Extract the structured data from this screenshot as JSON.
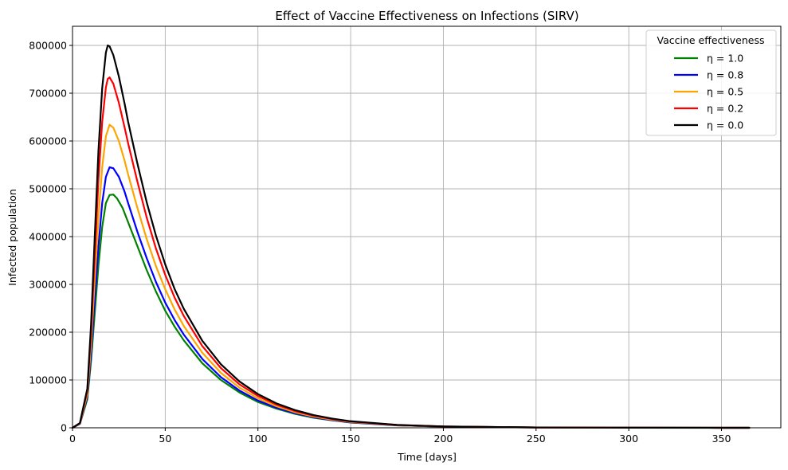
{
  "chart_data": {
    "type": "line",
    "title": "Effect of Vaccine Effectiveness on Infections (SIRV)",
    "xlabel": "Time [days]",
    "ylabel": "Infected population",
    "xlim": [
      0,
      382
    ],
    "ylim": [
      0,
      840000
    ],
    "xticks": [
      0,
      50,
      100,
      150,
      200,
      250,
      300,
      350
    ],
    "yticks": [
      0,
      100000,
      200000,
      300000,
      400000,
      500000,
      600000,
      700000,
      800000
    ],
    "grid": true,
    "legend": {
      "title": "Vaccine effectiveness",
      "placement": "top-right"
    },
    "series": [
      {
        "name": "η = 1.0",
        "color": "#008000",
        "points": [
          [
            0,
            0
          ],
          [
            4,
            8000
          ],
          [
            8,
            60000
          ],
          [
            10,
            140000
          ],
          [
            12,
            240000
          ],
          [
            14,
            340000
          ],
          [
            16,
            420000
          ],
          [
            18,
            470000
          ],
          [
            20,
            487000
          ],
          [
            22,
            488000
          ],
          [
            24,
            480000
          ],
          [
            27,
            460000
          ],
          [
            30,
            430000
          ],
          [
            35,
            380000
          ],
          [
            40,
            330000
          ],
          [
            45,
            285000
          ],
          [
            50,
            245000
          ],
          [
            55,
            212000
          ],
          [
            60,
            183000
          ],
          [
            70,
            135000
          ],
          [
            80,
            100000
          ],
          [
            90,
            74000
          ],
          [
            100,
            54000
          ],
          [
            110,
            40000
          ],
          [
            120,
            29000
          ],
          [
            130,
            21000
          ],
          [
            140,
            15500
          ],
          [
            150,
            11000
          ],
          [
            175,
            5000
          ],
          [
            200,
            2400
          ],
          [
            250,
            600
          ],
          [
            300,
            150
          ],
          [
            350,
            40
          ],
          [
            365,
            25
          ]
        ]
      },
      {
        "name": "η = 0.8",
        "color": "#0000ff",
        "points": [
          [
            0,
            0
          ],
          [
            4,
            8500
          ],
          [
            8,
            65000
          ],
          [
            10,
            155000
          ],
          [
            12,
            270000
          ],
          [
            14,
            380000
          ],
          [
            16,
            470000
          ],
          [
            18,
            525000
          ],
          [
            20,
            545000
          ],
          [
            22,
            543000
          ],
          [
            25,
            525000
          ],
          [
            28,
            495000
          ],
          [
            30,
            470000
          ],
          [
            35,
            410000
          ],
          [
            40,
            355000
          ],
          [
            45,
            305000
          ],
          [
            50,
            262000
          ],
          [
            55,
            226000
          ],
          [
            60,
            195000
          ],
          [
            70,
            144000
          ],
          [
            80,
            106000
          ],
          [
            90,
            78000
          ],
          [
            100,
            57000
          ],
          [
            110,
            42000
          ],
          [
            120,
            30500
          ],
          [
            130,
            22000
          ],
          [
            140,
            16000
          ],
          [
            150,
            11500
          ],
          [
            175,
            5200
          ],
          [
            200,
            2500
          ],
          [
            250,
            620
          ],
          [
            300,
            155
          ],
          [
            350,
            42
          ],
          [
            365,
            26
          ]
        ]
      },
      {
        "name": "η = 0.5",
        "color": "#ffa500",
        "points": [
          [
            0,
            0
          ],
          [
            4,
            9000
          ],
          [
            8,
            70000
          ],
          [
            10,
            175000
          ],
          [
            12,
            310000
          ],
          [
            14,
            440000
          ],
          [
            16,
            545000
          ],
          [
            18,
            610000
          ],
          [
            20,
            634000
          ],
          [
            22,
            628000
          ],
          [
            25,
            600000
          ],
          [
            28,
            560000
          ],
          [
            30,
            530000
          ],
          [
            35,
            460000
          ],
          [
            40,
            395000
          ],
          [
            45,
            338000
          ],
          [
            50,
            290000
          ],
          [
            55,
            248000
          ],
          [
            60,
            213000
          ],
          [
            70,
            157000
          ],
          [
            80,
            115000
          ],
          [
            90,
            84000
          ],
          [
            100,
            61500
          ],
          [
            110,
            45000
          ],
          [
            120,
            32500
          ],
          [
            130,
            23500
          ],
          [
            140,
            17000
          ],
          [
            150,
            12200
          ],
          [
            175,
            5500
          ],
          [
            200,
            2600
          ],
          [
            250,
            650
          ],
          [
            300,
            160
          ],
          [
            350,
            44
          ],
          [
            365,
            27
          ]
        ]
      },
      {
        "name": "η = 0.2",
        "color": "#ff0000",
        "points": [
          [
            0,
            0
          ],
          [
            4,
            9500
          ],
          [
            8,
            78000
          ],
          [
            10,
            200000
          ],
          [
            12,
            360000
          ],
          [
            14,
            520000
          ],
          [
            16,
            640000
          ],
          [
            18,
            712000
          ],
          [
            19,
            730000
          ],
          [
            20,
            733000
          ],
          [
            22,
            720000
          ],
          [
            25,
            680000
          ],
          [
            28,
            630000
          ],
          [
            30,
            595000
          ],
          [
            35,
            515000
          ],
          [
            40,
            440000
          ],
          [
            45,
            375000
          ],
          [
            50,
            320000
          ],
          [
            55,
            273000
          ],
          [
            60,
            234000
          ],
          [
            70,
            171000
          ],
          [
            80,
            125000
          ],
          [
            90,
            91000
          ],
          [
            100,
            66500
          ],
          [
            110,
            48500
          ],
          [
            120,
            35000
          ],
          [
            130,
            25300
          ],
          [
            140,
            18200
          ],
          [
            150,
            13000
          ],
          [
            175,
            5800
          ],
          [
            200,
            2700
          ],
          [
            250,
            680
          ],
          [
            300,
            165
          ],
          [
            350,
            45
          ],
          [
            365,
            28
          ]
        ]
      },
      {
        "name": "η = 0.0",
        "color": "#000000",
        "points": [
          [
            0,
            0
          ],
          [
            4,
            10000
          ],
          [
            8,
            82000
          ],
          [
            10,
            215000
          ],
          [
            12,
            400000
          ],
          [
            14,
            580000
          ],
          [
            16,
            710000
          ],
          [
            18,
            785000
          ],
          [
            19,
            800000
          ],
          [
            20,
            798000
          ],
          [
            22,
            780000
          ],
          [
            25,
            735000
          ],
          [
            28,
            680000
          ],
          [
            30,
            640000
          ],
          [
            35,
            553000
          ],
          [
            40,
            472000
          ],
          [
            45,
            402000
          ],
          [
            50,
            342000
          ],
          [
            55,
            291000
          ],
          [
            60,
            249000
          ],
          [
            70,
            182000
          ],
          [
            80,
            133000
          ],
          [
            90,
            97000
          ],
          [
            100,
            70500
          ],
          [
            110,
            51000
          ],
          [
            120,
            37000
          ],
          [
            130,
            26600
          ],
          [
            140,
            19200
          ],
          [
            150,
            13700
          ],
          [
            175,
            6100
          ],
          [
            200,
            2850
          ],
          [
            250,
            700
          ],
          [
            300,
            170
          ],
          [
            350,
            46
          ],
          [
            365,
            29
          ]
        ]
      }
    ]
  }
}
